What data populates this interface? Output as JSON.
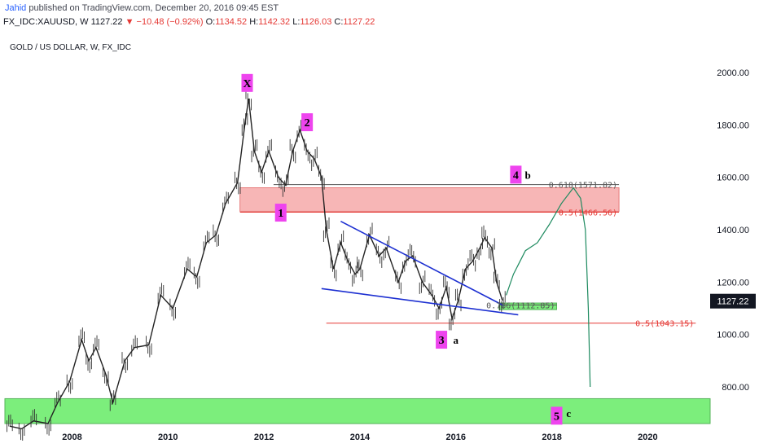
{
  "header": {
    "author": "Jahid",
    "published": "published on TradingView.com, December 20, 2016 09:45 EST",
    "symbol": "FX_IDC:XAUUSD, W",
    "last": "1127.22",
    "change": "−10.48 (−0.92%)",
    "open_label": "O:",
    "open": "1134.52",
    "high_label": "H:",
    "high": "1142.32",
    "low_label": "L:",
    "low": "1126.03",
    "close_label": "C:",
    "close": "1127.22"
  },
  "colors": {
    "up": "#e53935",
    "text": "#131722",
    "green_zone": "#76ee76",
    "red_zone": "#f7b3b3",
    "wave_label_bg": "#ee44ee",
    "trendline": "#1c2fd1",
    "projection": "#1d8a5f",
    "fib_red": "#e53935",
    "price_tag": "#131722"
  },
  "chart_data": {
    "type": "line",
    "title": "GOLD / US DOLLAR, W, FX_IDC",
    "x_ticks": [
      "2008",
      "2010",
      "2012",
      "2014",
      "2016",
      "2018",
      "2020"
    ],
    "y_ticks": [
      "2000.00",
      "1800.00",
      "1600.00",
      "1400.00",
      "1200.00",
      "1000.00",
      "800.00"
    ],
    "xlim": [
      2006.6,
      2021.3
    ],
    "ylim": [
      660,
      2090
    ],
    "current_price": 1127.22,
    "current_price_label": "1127.22",
    "series": [
      {
        "x": [
          2006.7,
          2006.95,
          2007.2,
          2007.5,
          2007.7,
          2007.95,
          2008.2,
          2008.35,
          2008.5,
          2008.7,
          2008.85,
          2009.1,
          2009.3,
          2009.6,
          2009.85,
          2010.1,
          2010.4,
          2010.6,
          2010.8,
          2011.0,
          2011.2,
          2011.45,
          2011.6,
          2011.68,
          2011.8,
          2011.95,
          2012.1,
          2012.3,
          2012.45,
          2012.6,
          2012.75,
          2012.9,
          2013.05,
          2013.2,
          2013.3,
          2013.45,
          2013.6,
          2013.75,
          2013.9,
          2014.0,
          2014.2,
          2014.4,
          2014.55,
          2014.8,
          2014.95,
          2015.1,
          2015.3,
          2015.5,
          2015.65,
          2015.8,
          2015.92,
          2016.05,
          2016.2,
          2016.35,
          2016.5,
          2016.6,
          2016.75,
          2016.85,
          2016.97
        ],
        "values": [
          650,
          640,
          670,
          660,
          740,
          820,
          980,
          900,
          950,
          850,
          740,
          900,
          950,
          960,
          1150,
          1100,
          1250,
          1220,
          1350,
          1380,
          1500,
          1580,
          1800,
          1900,
          1700,
          1620,
          1700,
          1600,
          1570,
          1700,
          1780,
          1700,
          1670,
          1600,
          1400,
          1250,
          1350,
          1280,
          1230,
          1250,
          1380,
          1300,
          1330,
          1200,
          1280,
          1300,
          1200,
          1150,
          1100,
          1180,
          1060,
          1130,
          1250,
          1280,
          1330,
          1370,
          1330,
          1200,
          1130
        ]
      }
    ],
    "zones": [
      {
        "name": "red-resistance-zone",
        "y_from": 1470,
        "y_to": 1560,
        "x_from": 2011.5,
        "x_to": 2019.4
      },
      {
        "name": "green-support-zone-small",
        "y_from": 1095,
        "y_to": 1120,
        "x_from": 2016.9,
        "x_to": 2018.1
      },
      {
        "name": "green-support-zone-large",
        "y_from": 660,
        "y_to": 755,
        "x_from": 2006.6,
        "x_to": 2021.3
      }
    ],
    "fib_levels": [
      {
        "label": "0.618(1571.82)",
        "value": 1571.82,
        "x_from": 2012.2,
        "x_to": 2019.4,
        "color": "#555555"
      },
      {
        "label": "0.5(1466.56)",
        "value": 1466.56,
        "x_from": 2011.5,
        "x_to": 2019.4,
        "color": "#e53935"
      },
      {
        "label": "0.786(1112.85)",
        "value": 1112.85,
        "x_from": 2016.9,
        "x_to": 2018.1,
        "color": "#555555"
      },
      {
        "label": "0.5(1043.15)",
        "value": 1043.15,
        "x_from": 2013.3,
        "x_to": 2021.0,
        "color": "#e53935"
      }
    ],
    "wave_labels": [
      {
        "text": "X",
        "x": 2011.65,
        "y": 1960
      },
      {
        "text": "2",
        "x": 2012.9,
        "y": 1810
      },
      {
        "text": "1",
        "x": 2012.35,
        "y": 1465
      },
      {
        "text": "4",
        "x": 2017.25,
        "y": 1610
      },
      {
        "text": "3",
        "x": 2015.7,
        "y": 980
      },
      {
        "text": "5",
        "x": 2018.1,
        "y": 690
      }
    ],
    "plain_labels": [
      {
        "text": "b",
        "x": 2017.5,
        "y": 1610
      },
      {
        "text": "a",
        "x": 2016.0,
        "y": 980
      },
      {
        "text": "c",
        "x": 2018.35,
        "y": 700
      }
    ],
    "trendlines": [
      {
        "x1": 2013.6,
        "y1": 1432,
        "x2": 2017.0,
        "y2": 1110
      },
      {
        "x1": 2013.2,
        "y1": 1175,
        "x2": 2017.3,
        "y2": 1075
      }
    ],
    "projection": {
      "x": [
        2017.05,
        2017.2,
        2017.45,
        2017.7,
        2017.95,
        2018.2,
        2018.45,
        2018.6,
        2018.7,
        2018.76,
        2018.8
      ],
      "y": [
        1150,
        1230,
        1320,
        1350,
        1420,
        1500,
        1560,
        1520,
        1400,
        1100,
        800
      ]
    }
  }
}
